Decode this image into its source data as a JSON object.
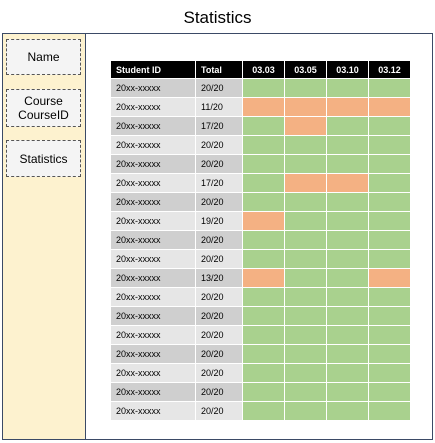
{
  "title": "Statistics",
  "sidebar": {
    "items": [
      {
        "label": "Name"
      },
      {
        "label": "Course\nCourseID"
      },
      {
        "label": "Statistics"
      }
    ]
  },
  "table": {
    "headers": {
      "id": "Student ID",
      "total": "Total",
      "dates": [
        "03.03",
        "03.05",
        "03.10",
        "03.12"
      ]
    },
    "rows": [
      {
        "id": "20xx-xxxxx",
        "total": "20/20",
        "att": [
          "present",
          "present",
          "present",
          "present"
        ]
      },
      {
        "id": "20xx-xxxxx",
        "total": "11/20",
        "att": [
          "absent",
          "absent",
          "absent",
          "absent"
        ]
      },
      {
        "id": "20xx-xxxxx",
        "total": "17/20",
        "att": [
          "present",
          "absent",
          "present",
          "present"
        ]
      },
      {
        "id": "20xx-xxxxx",
        "total": "20/20",
        "att": [
          "present",
          "present",
          "present",
          "present"
        ]
      },
      {
        "id": "20xx-xxxxx",
        "total": "20/20",
        "att": [
          "present",
          "present",
          "present",
          "present"
        ]
      },
      {
        "id": "20xx-xxxxx",
        "total": "17/20",
        "att": [
          "present",
          "absent",
          "absent",
          "present"
        ]
      },
      {
        "id": "20xx-xxxxx",
        "total": "20/20",
        "att": [
          "present",
          "present",
          "present",
          "present"
        ]
      },
      {
        "id": "20xx-xxxxx",
        "total": "19/20",
        "att": [
          "absent",
          "present",
          "present",
          "present"
        ]
      },
      {
        "id": "20xx-xxxxx",
        "total": "20/20",
        "att": [
          "present",
          "present",
          "present",
          "present"
        ]
      },
      {
        "id": "20xx-xxxxx",
        "total": "20/20",
        "att": [
          "present",
          "present",
          "present",
          "present"
        ]
      },
      {
        "id": "20xx-xxxxx",
        "total": "13/20",
        "att": [
          "absent",
          "present",
          "present",
          "absent"
        ]
      },
      {
        "id": "20xx-xxxxx",
        "total": "20/20",
        "att": [
          "present",
          "present",
          "present",
          "present"
        ]
      },
      {
        "id": "20xx-xxxxx",
        "total": "20/20",
        "att": [
          "present",
          "present",
          "present",
          "present"
        ]
      },
      {
        "id": "20xx-xxxxx",
        "total": "20/20",
        "att": [
          "present",
          "present",
          "present",
          "present"
        ]
      },
      {
        "id": "20xx-xxxxx",
        "total": "20/20",
        "att": [
          "present",
          "present",
          "present",
          "present"
        ]
      },
      {
        "id": "20xx-xxxxx",
        "total": "20/20",
        "att": [
          "present",
          "present",
          "present",
          "present"
        ]
      },
      {
        "id": "20xx-xxxxx",
        "total": "20/20",
        "att": [
          "present",
          "present",
          "present",
          "present"
        ]
      },
      {
        "id": "20xx-xxxxx",
        "total": "20/20",
        "att": [
          "present",
          "present",
          "present",
          "present"
        ]
      }
    ]
  },
  "colors": {
    "present": "#a9d18e",
    "absent": "#f4b183",
    "sidebar_bg": "#fdf2cf",
    "header_bg": "#000000"
  }
}
